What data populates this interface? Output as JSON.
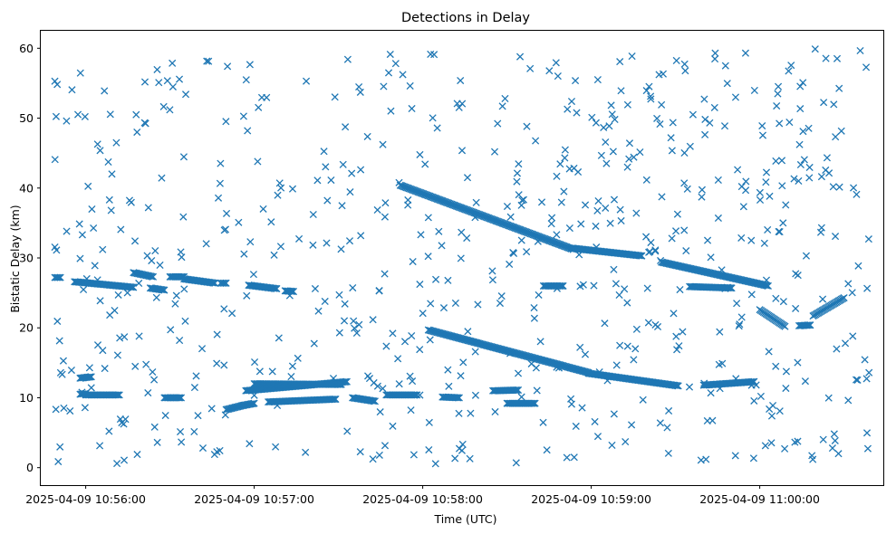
{
  "chart_data": {
    "type": "scatter",
    "title": "Detections in Delay",
    "xlabel": "Time (UTC)",
    "ylabel": "Bistatic Delay (km)",
    "marker": "x",
    "color": "#1f77b4",
    "grid": false,
    "xlim": [
      "2025-04-09 10:55:44",
      "2025-04-09 11:00:44"
    ],
    "ylim": [
      -2.5,
      62.5
    ],
    "xticks": [
      "2025-04-09 10:56:00",
      "2025-04-09 10:57:00",
      "2025-04-09 10:58:00",
      "2025-04-09 10:59:00",
      "2025-04-09 11:00:00"
    ],
    "yticks": [
      "0",
      "10",
      "20",
      "30",
      "40",
      "50",
      "60"
    ],
    "tracks": [
      {
        "x": [
          "2025-04-09 10:55:49",
          "2025-04-09 10:55:51"
        ],
        "y": [
          27.2,
          27.2
        ]
      },
      {
        "x": [
          "2025-04-09 10:55:56",
          "2025-04-09 10:56:17"
        ],
        "y": [
          26.6,
          25.8
        ]
      },
      {
        "x": [
          "2025-04-09 10:56:17",
          "2025-04-09 10:56:24"
        ],
        "y": [
          27.9,
          27.3
        ]
      },
      {
        "x": [
          "2025-04-09 10:56:23",
          "2025-04-09 10:56:28"
        ],
        "y": [
          25.7,
          25.4
        ]
      },
      {
        "x": [
          "2025-04-09 10:56:30",
          "2025-04-09 10:56:35"
        ],
        "y": [
          27.3,
          27.3
        ]
      },
      {
        "x": [
          "2025-04-09 10:56:35",
          "2025-04-09 10:56:46"
        ],
        "y": [
          27.0,
          26.4
        ]
      },
      {
        "x": [
          "2025-04-09 10:56:48",
          "2025-04-09 10:56:50"
        ],
        "y": [
          26.4,
          26.4
        ]
      },
      {
        "x": [
          "2025-04-09 10:56:58",
          "2025-04-09 10:57:08"
        ],
        "y": [
          26.1,
          25.6
        ]
      },
      {
        "x": [
          "2025-04-09 10:57:11",
          "2025-04-09 10:57:14"
        ],
        "y": [
          25.3,
          25.2
        ]
      },
      {
        "x": [
          "2025-04-09 10:55:58",
          "2025-04-09 10:56:00"
        ],
        "y": [
          10.5,
          10.6
        ]
      },
      {
        "x": [
          "2025-04-09 10:56:00",
          "2025-04-09 10:56:12"
        ],
        "y": [
          10.4,
          10.4
        ]
      },
      {
        "x": [
          "2025-04-09 10:55:58",
          "2025-04-09 10:56:02"
        ],
        "y": [
          12.8,
          13.0
        ]
      },
      {
        "x": [
          "2025-04-09 10:56:28",
          "2025-04-09 10:56:34"
        ],
        "y": [
          10.0,
          10.0
        ]
      },
      {
        "x": [
          "2025-04-09 10:56:50",
          "2025-04-09 10:56:56"
        ],
        "y": [
          8.3,
          8.9
        ]
      },
      {
        "x": [
          "2025-04-09 10:56:56",
          "2025-04-09 10:57:00"
        ],
        "y": [
          8.9,
          9.2
        ]
      },
      {
        "x": [
          "2025-04-09 10:56:57",
          "2025-04-09 10:57:33"
        ],
        "y": [
          11.0,
          12.3
        ]
      },
      {
        "x": [
          "2025-04-09 10:57:00",
          "2025-04-09 10:57:31"
        ],
        "y": [
          12.0,
          11.9
        ]
      },
      {
        "x": [
          "2025-04-09 10:57:05",
          "2025-04-09 10:57:29"
        ],
        "y": [
          9.4,
          9.8
        ]
      },
      {
        "x": [
          "2025-04-09 10:57:35",
          "2025-04-09 10:57:43"
        ],
        "y": [
          10.0,
          9.5
        ]
      },
      {
        "x": [
          "2025-04-09 10:57:47",
          "2025-04-09 10:57:58"
        ],
        "y": [
          10.4,
          10.4
        ]
      },
      {
        "x": [
          "2025-04-09 10:57:52",
          "2025-04-09 10:58:53"
        ],
        "y": [
          40.4,
          31.3
        ]
      },
      {
        "x": [
          "2025-04-09 10:58:53",
          "2025-04-09 10:59:18"
        ],
        "y": [
          31.4,
          30.3
        ]
      },
      {
        "x": [
          "2025-04-09 10:59:25",
          "2025-04-09 11:00:03"
        ],
        "y": [
          29.4,
          26.0
        ]
      },
      {
        "x": [
          "2025-04-09 10:59:35",
          "2025-04-09 10:59:50"
        ],
        "y": [
          25.9,
          25.7
        ]
      },
      {
        "x": [
          "2025-04-09 10:58:02",
          "2025-04-09 10:58:59"
        ],
        "y": [
          19.7,
          13.6
        ]
      },
      {
        "x": [
          "2025-04-09 10:58:59",
          "2025-04-09 10:59:31"
        ],
        "y": [
          13.5,
          11.7
        ]
      },
      {
        "x": [
          "2025-04-09 10:59:40",
          "2025-04-09 10:59:58"
        ],
        "y": [
          11.8,
          12.3
        ]
      },
      {
        "x": [
          "2025-04-09 11:00:00",
          "2025-04-09 11:00:09"
        ],
        "y": [
          22.6,
          20.2
        ]
      },
      {
        "x": [
          "2025-04-09 11:00:14",
          "2025-04-09 11:00:18"
        ],
        "y": [
          20.3,
          20.4
        ]
      },
      {
        "x": [
          "2025-04-09 11:00:19",
          "2025-04-09 11:00:30"
        ],
        "y": [
          21.7,
          24.3
        ]
      },
      {
        "x": [
          "2025-04-09 10:58:25",
          "2025-04-09 10:58:34"
        ],
        "y": [
          11.0,
          11.1
        ]
      },
      {
        "x": [
          "2025-04-09 10:58:30",
          "2025-04-09 10:58:40"
        ],
        "y": [
          9.2,
          9.2
        ]
      },
      {
        "x": [
          "2025-04-09 10:58:07",
          "2025-04-09 10:58:13"
        ],
        "y": [
          10.1,
          10.0
        ]
      },
      {
        "x": [
          "2025-04-09 10:58:43",
          "2025-04-09 10:58:50"
        ],
        "y": [
          26.0,
          26.0
        ]
      }
    ],
    "clutter_count": 640,
    "clutter_xrange": [
      "2025-04-09 10:55:49",
      "2025-04-09 11:00:40"
    ],
    "clutter_yrange": [
      0.5,
      60.0
    ]
  }
}
